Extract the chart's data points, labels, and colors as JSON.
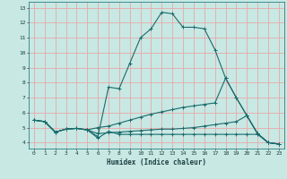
{
  "xlabel": "Humidex (Indice chaleur)",
  "ylabel": "",
  "bg_color": "#c8e8e4",
  "grid_color": "#e8a8a8",
  "line_color": "#1a6b6b",
  "xlim": [
    -0.5,
    23.5
  ],
  "ylim": [
    3.6,
    13.4
  ],
  "xticks": [
    0,
    1,
    2,
    3,
    4,
    5,
    6,
    7,
    8,
    9,
    10,
    11,
    12,
    13,
    14,
    15,
    16,
    17,
    18,
    19,
    20,
    21,
    22,
    23
  ],
  "yticks": [
    4,
    5,
    6,
    7,
    8,
    9,
    10,
    11,
    12,
    13
  ],
  "line1_x": [
    0,
    1,
    2,
    3,
    4,
    5,
    6,
    7,
    8,
    9,
    10,
    11,
    12,
    13,
    14,
    15,
    16,
    17,
    18,
    19,
    20,
    21,
    22,
    23
  ],
  "line1_y": [
    5.5,
    5.4,
    4.7,
    4.9,
    4.95,
    4.85,
    4.4,
    7.7,
    7.6,
    9.3,
    11.0,
    11.6,
    12.7,
    12.6,
    11.7,
    11.7,
    11.6,
    10.2,
    8.3,
    7.0,
    5.8,
    4.6,
    4.0,
    3.9
  ],
  "line2_x": [
    0,
    1,
    2,
    3,
    4,
    5,
    6,
    7,
    8,
    9,
    10,
    11,
    12,
    13,
    14,
    15,
    16,
    17,
    18,
    19,
    20,
    21,
    22,
    23
  ],
  "line2_y": [
    5.5,
    5.4,
    4.7,
    4.9,
    4.95,
    4.85,
    5.0,
    5.1,
    5.3,
    5.5,
    5.7,
    5.9,
    6.05,
    6.2,
    6.35,
    6.45,
    6.55,
    6.65,
    8.3,
    7.0,
    5.8,
    4.6,
    4.0,
    3.9
  ],
  "line3_x": [
    0,
    1,
    2,
    3,
    4,
    5,
    6,
    7,
    8,
    9,
    10,
    11,
    12,
    13,
    14,
    15,
    16,
    17,
    18,
    19,
    20,
    21,
    22,
    23
  ],
  "line3_y": [
    5.5,
    5.4,
    4.7,
    4.9,
    4.95,
    4.85,
    4.6,
    4.65,
    4.7,
    4.75,
    4.8,
    4.85,
    4.9,
    4.9,
    4.95,
    5.0,
    5.1,
    5.2,
    5.3,
    5.4,
    5.8,
    4.6,
    4.0,
    3.9
  ],
  "line4_x": [
    0,
    1,
    2,
    3,
    4,
    5,
    6,
    7,
    8,
    9,
    10,
    11,
    12,
    13,
    14,
    15,
    16,
    17,
    18,
    19,
    20,
    21,
    22,
    23
  ],
  "line4_y": [
    5.5,
    5.4,
    4.7,
    4.9,
    4.95,
    4.85,
    4.3,
    4.75,
    4.55,
    4.55,
    4.55,
    4.55,
    4.55,
    4.55,
    4.55,
    4.55,
    4.55,
    4.55,
    4.55,
    4.55,
    4.55,
    4.55,
    4.0,
    3.9
  ]
}
